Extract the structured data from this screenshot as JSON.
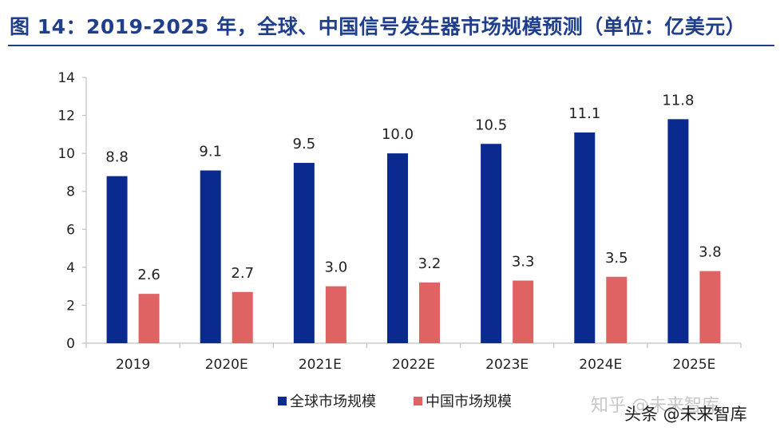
{
  "title": "图 14：2019-2025 年，全球、中国信号发生器市场规模预测（单位：亿美元）",
  "watermarks": {
    "zhihu": "知乎 @未来智库",
    "toutiao": "头条 @未来智库"
  },
  "colors": {
    "title": "#1f3f8c",
    "global": "#0a2a8f",
    "china": "#e06364",
    "axis": "#c0c0c0",
    "text": "#222222"
  },
  "chart_data": {
    "type": "bar",
    "title": "2019-2025 年，全球、中国信号发生器市场规模预测（单位：亿美元）",
    "xlabel": "",
    "ylabel": "",
    "categories": [
      "2019",
      "2020E",
      "2021E",
      "2022E",
      "2023E",
      "2024E",
      "2025E"
    ],
    "series": [
      {
        "name": "全球市场规模",
        "values": [
          8.8,
          9.1,
          9.5,
          10.0,
          10.5,
          11.1,
          11.8
        ],
        "labels": [
          "8.8",
          "9.1",
          "9.5",
          "10.0",
          "10.5",
          "11.1",
          "11.8"
        ]
      },
      {
        "name": "中国市场规模",
        "values": [
          2.6,
          2.7,
          3.0,
          3.2,
          3.3,
          3.5,
          3.8
        ],
        "labels": [
          "2.6",
          "2.7",
          "3.0",
          "3.2",
          "3.3",
          "3.5",
          "3.8"
        ]
      }
    ],
    "ylim": [
      0,
      14
    ],
    "yticks": [
      0,
      2,
      4,
      6,
      8,
      10,
      12,
      14
    ],
    "grid": false,
    "legend": "bottom"
  }
}
